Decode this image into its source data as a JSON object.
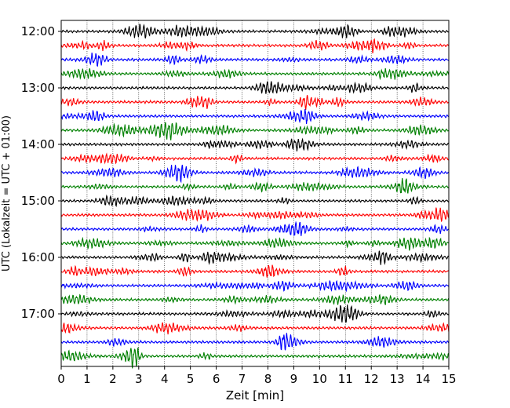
{
  "chart_data": {
    "type": "line",
    "title": "",
    "xlabel": "Zeit  [min]",
    "ylabel": "UTC (Lokalzeit = UTC + 01:00)",
    "xlim": [
      0,
      15
    ],
    "x_ticks": [
      0,
      1,
      2,
      3,
      4,
      5,
      6,
      7,
      8,
      9,
      10,
      11,
      12,
      13,
      14,
      15
    ],
    "y_ticks": [
      "12:00",
      "13:00",
      "14:00",
      "15:00",
      "16:00",
      "17:00"
    ],
    "grid": "vertical dotted",
    "legend": "none",
    "rows": {
      "start": "12:00",
      "interval_minutes": 15,
      "count": 24,
      "color_cycle": [
        "#000000",
        "#ff0000",
        "#0000ff",
        "#008000"
      ]
    }
  }
}
